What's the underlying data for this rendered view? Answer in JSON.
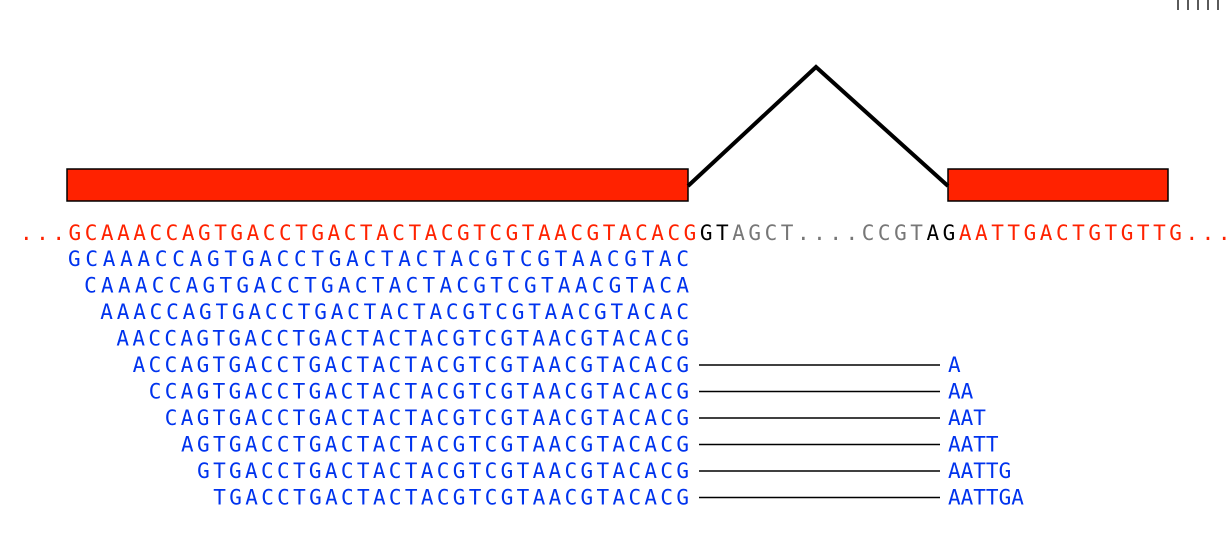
{
  "colors": {
    "exon_fill": "#ff2200",
    "exon_stroke": "#000000",
    "exon_text": "#ff2200",
    "intron_text": "#777777",
    "splice_text": "#000000",
    "read_text": "#0033ee",
    "line": "#000000"
  },
  "reference": [
    {
      "text": "...",
      "kind": "exon"
    },
    {
      "text": "GCAAACCAGTGACCTGACTACTACGTCGTAACGTACACG",
      "kind": "exon"
    },
    {
      "text": "GT",
      "kind": "splice"
    },
    {
      "text": "AGCT....CCGT",
      "kind": "intron"
    },
    {
      "text": "AG",
      "kind": "splice"
    },
    {
      "text": "AATTGACTGTGTTG",
      "kind": "exon"
    },
    {
      "text": "...",
      "kind": "exon"
    }
  ],
  "reads": [
    {
      "offset": 0,
      "left": "GCAAACCAGTGACCTGACTACTACGTCGTAACGTAC",
      "right": ""
    },
    {
      "offset": 1,
      "left": "CAAACCAGTGACCTGACTACTACGTCGTAACGTACA",
      "right": ""
    },
    {
      "offset": 2,
      "left": "AAACCAGTGACCTGACTACTACGTCGTAACGTACAC",
      "right": ""
    },
    {
      "offset": 3,
      "left": "AACCAGTGACCTGACTACTACGTCGTAACGTACACG",
      "right": ""
    },
    {
      "offset": 4,
      "left": "ACCAGTGACCTGACTACTACGTCGTAACGTACACG",
      "right": "A"
    },
    {
      "offset": 5,
      "left": "CCAGTGACCTGACTACTACGTCGTAACGTACACG",
      "right": "AA"
    },
    {
      "offset": 6,
      "left": "CAGTGACCTGACTACTACGTCGTAACGTACACG",
      "right": "AAT"
    },
    {
      "offset": 7,
      "left": "AGTGACCTGACTACTACGTCGTAACGTACACG",
      "right": "AATT"
    },
    {
      "offset": 8,
      "left": "GTGACCTGACTACTACGTCGTAACGTACACG",
      "right": "AATTG"
    },
    {
      "offset": 9,
      "left": "TGACCTGACTACTACGTCGTAACGTACACG",
      "right": "AATTGA"
    }
  ]
}
